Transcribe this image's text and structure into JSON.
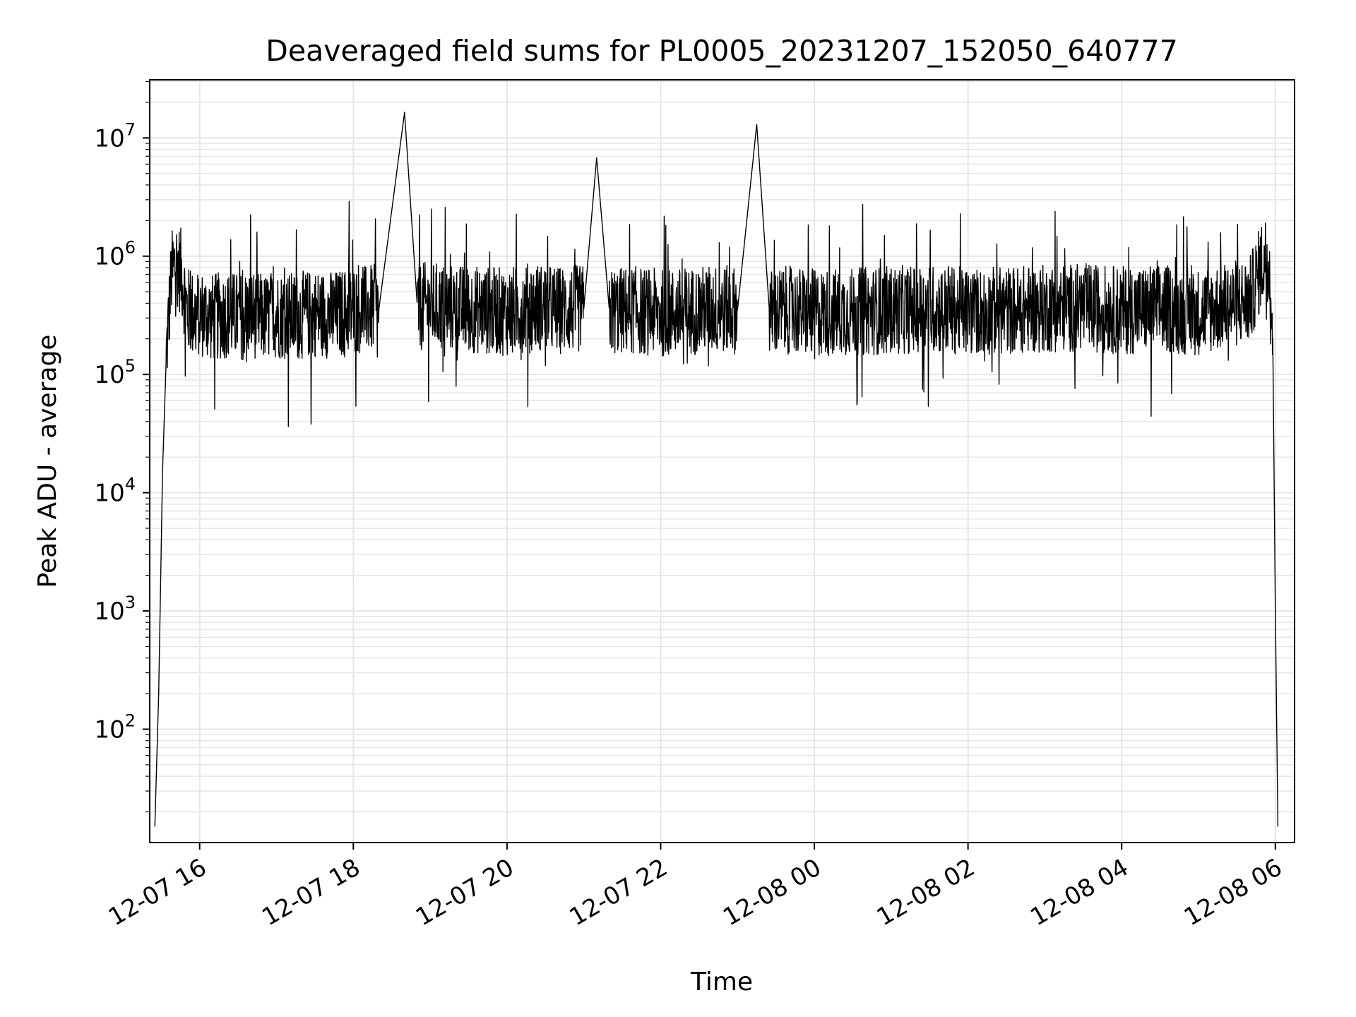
{
  "chart_data": {
    "type": "line",
    "title": "Deaveraged field sums for PL0005_20231207_152050_640777",
    "xlabel": "Time",
    "ylabel": "Peak ADU - average",
    "yscale": "log",
    "ylim": [
      11,
      31000000
    ],
    "xlim": [
      "2023-12-07 15:21",
      "2023-12-08 06:15"
    ],
    "grid": true,
    "line_color": "#000000",
    "grid_color": "#e6e6e6",
    "x_ticks": [
      {
        "value": "2023-12-07 16:00",
        "label": "12-07 16"
      },
      {
        "value": "2023-12-07 18:00",
        "label": "12-07 18"
      },
      {
        "value": "2023-12-07 20:00",
        "label": "12-07 20"
      },
      {
        "value": "2023-12-07 22:00",
        "label": "12-07 22"
      },
      {
        "value": "2023-12-08 00:00",
        "label": "12-08 00"
      },
      {
        "value": "2023-12-08 02:00",
        "label": "12-08 02"
      },
      {
        "value": "2023-12-08 04:00",
        "label": "12-08 04"
      },
      {
        "value": "2023-12-08 06:00",
        "label": "12-08 06"
      }
    ],
    "y_ticks": [
      {
        "value": 100,
        "base": "10",
        "exp": "2"
      },
      {
        "value": 1000,
        "base": "10",
        "exp": "3"
      },
      {
        "value": 10000,
        "base": "10",
        "exp": "4"
      },
      {
        "value": 100000,
        "base": "10",
        "exp": "5"
      },
      {
        "value": 1000000,
        "base": "10",
        "exp": "6"
      },
      {
        "value": 10000000,
        "base": "10",
        "exp": "7"
      }
    ],
    "series": [
      {
        "x": [
          "2023-12-07 15:25",
          "2023-12-07 15:28",
          "2023-12-07 15:31",
          "2023-12-07 15:34",
          "2023-12-07 15:38",
          "2023-12-07 15:42",
          "2023-12-07 15:46",
          "2023-12-07 15:50",
          "2023-12-07 15:55",
          "2023-12-07 16:00",
          "2023-12-07 16:10",
          "2023-12-07 16:20",
          "2023-12-07 16:30",
          "2023-12-07 16:40",
          "2023-12-07 16:50",
          "2023-12-07 17:00",
          "2023-12-07 17:15",
          "2023-12-07 17:30",
          "2023-12-07 17:45",
          "2023-12-07 18:00",
          "2023-12-07 18:20",
          "2023-12-07 18:40",
          "2023-12-07 18:50",
          "2023-12-07 19:00",
          "2023-12-07 19:20",
          "2023-12-07 19:40",
          "2023-12-07 20:00",
          "2023-12-07 20:20",
          "2023-12-07 20:40",
          "2023-12-07 21:00",
          "2023-12-07 21:10",
          "2023-12-07 21:20",
          "2023-12-07 21:40",
          "2023-12-07 22:00",
          "2023-12-07 22:20",
          "2023-12-07 22:40",
          "2023-12-07 23:00",
          "2023-12-07 23:15",
          "2023-12-07 23:25",
          "2023-12-07 23:40",
          "2023-12-08 00:00",
          "2023-12-08 00:30",
          "2023-12-08 01:00",
          "2023-12-08 01:30",
          "2023-12-08 02:00",
          "2023-12-08 02:30",
          "2023-12-08 03:00",
          "2023-12-08 03:30",
          "2023-12-08 04:00",
          "2023-12-08 04:30",
          "2023-12-08 05:00",
          "2023-12-08 05:20",
          "2023-12-08 05:40",
          "2023-12-08 05:50",
          "2023-12-08 05:55",
          "2023-12-08 05:58",
          "2023-12-08 06:00",
          "2023-12-08 06:02"
        ],
        "values": [
          15,
          200,
          15000,
          150000,
          700000,
          900000,
          700000,
          350000,
          320000,
          330000,
          300000,
          320000,
          310000,
          330000,
          300000,
          320000,
          310000,
          330000,
          320000,
          350000,
          360000,
          16500000,
          370000,
          380000,
          360000,
          350000,
          340000,
          380000,
          350000,
          360000,
          6800000,
          340000,
          350000,
          330000,
          340000,
          360000,
          350000,
          13000000,
          330000,
          350000,
          330000,
          340000,
          350000,
          360000,
          340000,
          350000,
          360000,
          370000,
          350000,
          360000,
          340000,
          380000,
          420000,
          900000,
          1000000,
          200000,
          1000,
          15
        ]
      }
    ]
  }
}
